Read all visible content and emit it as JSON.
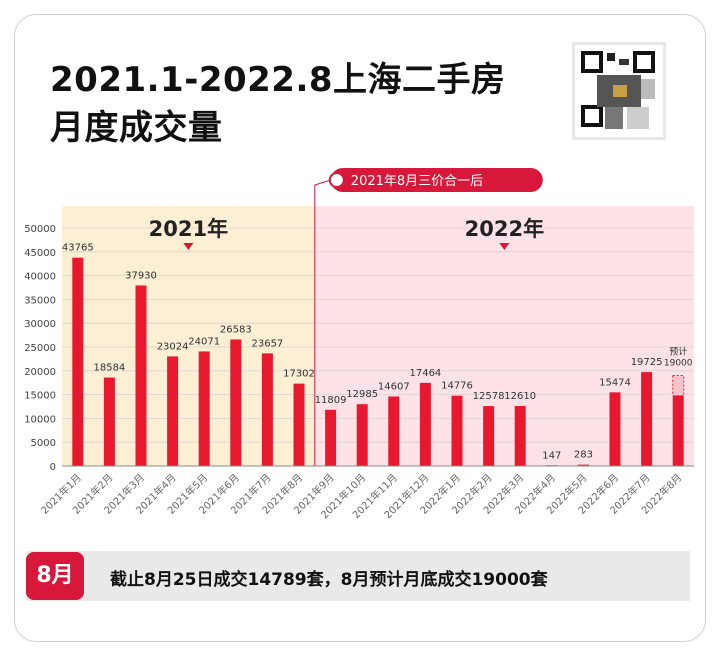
{
  "title_line1": "2021.1-2022.8上海二手房",
  "title_line2": "月度成交量",
  "annotation_label": "2021年8月三价合一后",
  "region_2021_label": "2021年",
  "region_2022_label": "2022年",
  "forecast_label_line1": "预计",
  "forecast_label_line2": "19000",
  "bottom_badge": "8月",
  "bottom_text": "截止8月25日成交14789套，8月预计月底成交19000套",
  "colors": {
    "bar": "#e8192e",
    "region_2021_bg": "#fcefd4",
    "region_2022_bg": "#fde3e8",
    "accent": "#d8183b",
    "forecast_fill": "#f7c2c8"
  },
  "chart_data": {
    "type": "bar",
    "categories": [
      "2021年1月",
      "2021年2月",
      "2021年3月",
      "2021年4月",
      "2021年5月",
      "2021年6月",
      "2021年7月",
      "2021年8月",
      "2021年9月",
      "2021年10月",
      "2021年11月",
      "2021年12月",
      "2022年1月",
      "2022年2月",
      "2022年3月",
      "2022年4月",
      "2022年5月",
      "2022年6月",
      "2022年7月",
      "2022年8月"
    ],
    "values": [
      43765,
      18584,
      37930,
      23024,
      24071,
      26583,
      23657,
      17302,
      11809,
      12985,
      14607,
      17464,
      14776,
      12578,
      12610,
      147,
      283,
      15474,
      19725,
      14789
    ],
    "value_labels": [
      "43765",
      "18584",
      "37930",
      "23024",
      "24071",
      "26583",
      "23657",
      "17302",
      "11809",
      "12985",
      "14607",
      "17464",
      "14776",
      "12578",
      "12610",
      "147",
      "283",
      "15474",
      "19725",
      ""
    ],
    "forecast": {
      "category": "2022年8月",
      "value": 19000
    },
    "ylim": [
      0,
      50000
    ],
    "yticks": [
      0,
      5000,
      10000,
      15000,
      20000,
      25000,
      30000,
      35000,
      40000,
      45000,
      50000
    ],
    "grid": true
  }
}
